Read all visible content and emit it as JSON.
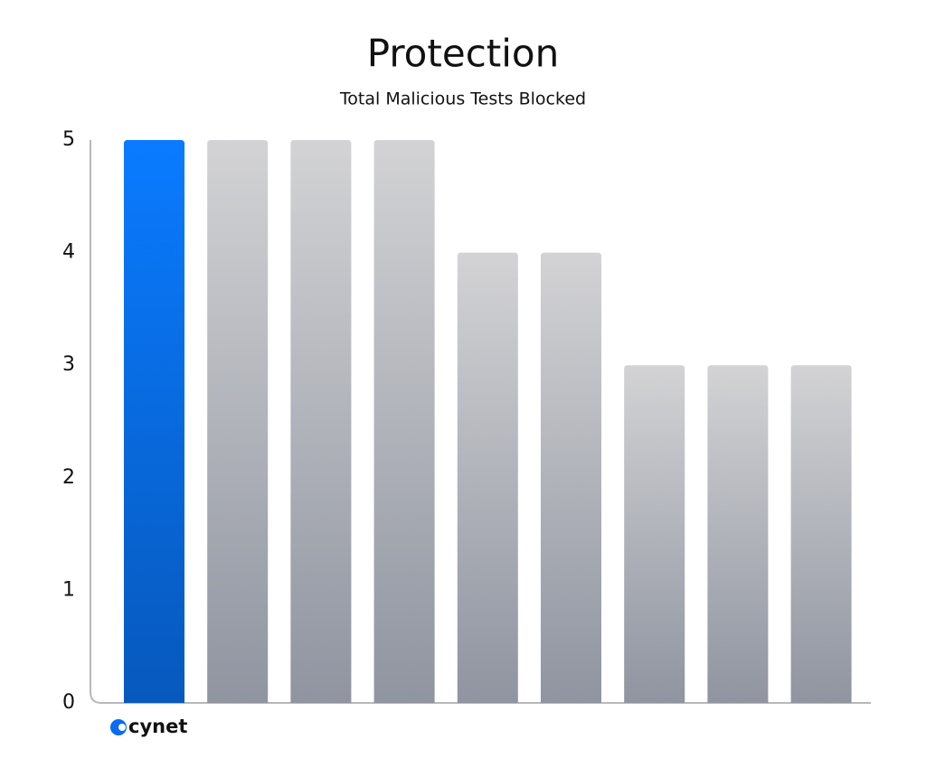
{
  "chart_data": {
    "type": "bar",
    "title": "Protection",
    "subtitle": "Total Malicious Tests Blocked",
    "categories": [
      "cynet",
      null,
      null,
      null,
      null,
      null,
      null,
      null,
      null
    ],
    "values": [
      5,
      5,
      5,
      5,
      4,
      4,
      3,
      3,
      3
    ],
    "colors": [
      "#0a7bff",
      "#d3d3d5",
      "#d3d3d5",
      "#d3d3d5",
      "#d3d3d5",
      "#d3d3d5",
      "#d3d3d5",
      "#d3d3d5",
      "#d3d3d5"
    ],
    "ylim": [
      0,
      5
    ],
    "yticks": [
      0,
      1,
      2,
      3,
      4,
      5
    ],
    "grid": false
  }
}
